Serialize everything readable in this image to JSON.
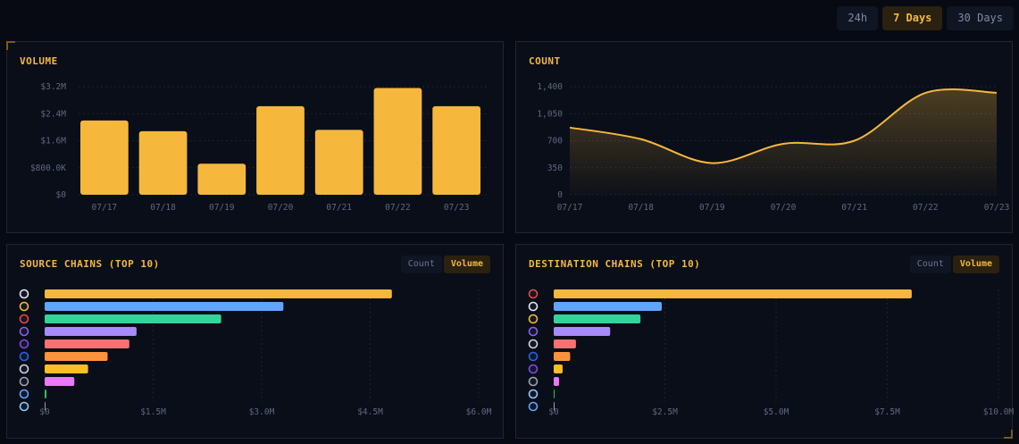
{
  "range_tabs": [
    {
      "label": "24h",
      "active": false
    },
    {
      "label": "7 Days",
      "active": true
    },
    {
      "label": "30 Days",
      "active": false
    }
  ],
  "panels": {
    "volume": {
      "title": "VOLUME"
    },
    "count": {
      "title": "COUNT"
    },
    "source": {
      "title": "SOURCE CHAINS (TOP 10)",
      "toggle": [
        "Count",
        "Volume"
      ],
      "active_toggle": "Volume"
    },
    "destination": {
      "title": "DESTINATION CHAINS (TOP 10)",
      "toggle": [
        "Count",
        "Volume"
      ],
      "active_toggle": "Volume"
    }
  },
  "colors": {
    "accent": "#f5b83d"
  },
  "chart_data": [
    {
      "type": "bar",
      "title": "VOLUME",
      "categories": [
        "07/17",
        "07/18",
        "07/19",
        "07/20",
        "07/21",
        "07/22",
        "07/23"
      ],
      "values": [
        2200000,
        1880000,
        920000,
        2620000,
        1920000,
        3160000,
        2620000
      ],
      "yticks": [
        0,
        800000,
        1600000,
        2400000,
        3200000
      ],
      "ytick_labels": [
        "$0",
        "$800.0K",
        "$1.6M",
        "$2.4M",
        "$3.2M"
      ],
      "ylim": [
        0,
        3200000
      ],
      "color": "#f5b83d",
      "grid": true
    },
    {
      "type": "area",
      "title": "COUNT",
      "categories": [
        "07/17",
        "07/18",
        "07/19",
        "07/20",
        "07/21",
        "07/22",
        "07/23"
      ],
      "values": [
        870,
        720,
        410,
        660,
        700,
        1320,
        1320
      ],
      "yticks": [
        0,
        350,
        700,
        1050,
        1400
      ],
      "ytick_labels": [
        "0",
        "350",
        "700",
        "1,050",
        "1,400"
      ],
      "ylim": [
        0,
        1400
      ],
      "color": "#f5b83d",
      "grid": true
    },
    {
      "type": "bar",
      "orientation": "horizontal",
      "title": "SOURCE CHAINS (TOP 10)",
      "categories": [
        "chain-1",
        "chain-2",
        "chain-3",
        "chain-4",
        "chain-5",
        "chain-6",
        "chain-7",
        "chain-8",
        "chain-9",
        "chain-10"
      ],
      "icons": [
        "ethereum-icon",
        "bnb-icon",
        "tron-icon",
        "solana-icon",
        "polygon-icon",
        "base-icon",
        "x-chain-icon",
        "optimism-icon",
        "chain-alt-icon",
        "coin-icon"
      ],
      "values": [
        4800000,
        3300000,
        2440000,
        1270000,
        1170000,
        870000,
        600000,
        410000,
        10000,
        0
      ],
      "colors": [
        "#f5b83d",
        "#60a5fa",
        "#34d399",
        "#a78bfa",
        "#f87171",
        "#fb923c",
        "#fbbf24",
        "#e879f9",
        "#22c55e",
        "#94a3b8"
      ],
      "xticks": [
        0,
        1500000,
        3000000,
        4500000,
        6000000
      ],
      "xtick_labels": [
        "$0",
        "$1.5M",
        "$3.0M",
        "$4.5M",
        "$6.0M"
      ],
      "xlim": [
        0,
        6000000
      ]
    },
    {
      "type": "bar",
      "orientation": "horizontal",
      "title": "DESTINATION CHAINS (TOP 10)",
      "categories": [
        "chain-1",
        "chain-2",
        "chain-3",
        "chain-4",
        "chain-5",
        "chain-6",
        "chain-7",
        "chain-8",
        "chain-9",
        "chain-10"
      ],
      "icons": [
        "tron-icon",
        "ethereum-icon",
        "bnb-icon",
        "solana-icon",
        "x-chain-icon",
        "base-icon",
        "polygon-icon",
        "optimism-icon",
        "coin-icon",
        "chain-alt-icon"
      ],
      "values": [
        8050000,
        2430000,
        1950000,
        1270000,
        500000,
        370000,
        200000,
        120000,
        0,
        0
      ],
      "colors": [
        "#f5b83d",
        "#60a5fa",
        "#34d399",
        "#a78bfa",
        "#f87171",
        "#fb923c",
        "#fbbf24",
        "#e879f9",
        "#22c55e",
        "#94a3b8"
      ],
      "xticks": [
        0,
        2500000,
        5000000,
        7500000,
        10000000
      ],
      "xtick_labels": [
        "$0",
        "$2.5M",
        "$5.0M",
        "$7.5M",
        "$10.0M"
      ],
      "xlim": [
        0,
        10000000
      ]
    }
  ]
}
